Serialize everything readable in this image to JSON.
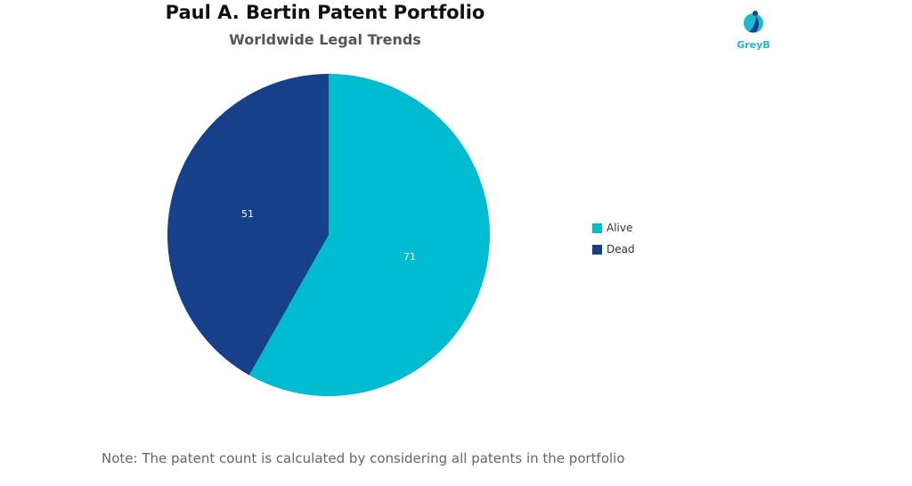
{
  "chart_data": {
    "type": "pie",
    "title": "Paul A. Bertin Patent Portfolio",
    "subtitle": "Worldwide Legal Trends",
    "slices": [
      {
        "label": "Alive",
        "value": 71,
        "color": "#00bcd0"
      },
      {
        "label": "Dead",
        "value": 51,
        "color": "#17408b"
      }
    ],
    "start_angle": "12 o'clock",
    "direction": "clockwise",
    "legend_position": "right"
  },
  "logo": {
    "text": "GreyB",
    "color": "#1fb8cc",
    "icon": "greyb-logo-icon"
  },
  "note": "Note: The patent count is calculated by considering all patents in the portfolio"
}
